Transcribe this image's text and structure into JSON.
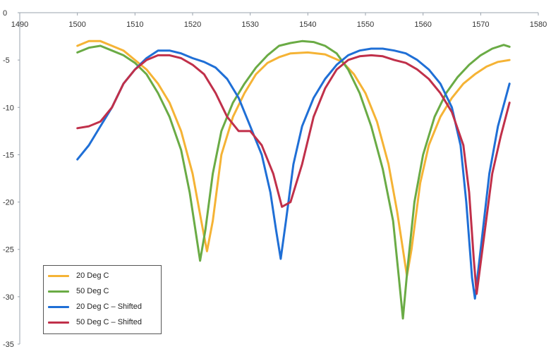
{
  "chart_data": {
    "type": "line",
    "title": "",
    "xlabel": "",
    "ylabel": "",
    "xlim": [
      1490,
      1580
    ],
    "ylim": [
      -35,
      0
    ],
    "x_ticks": [
      "1490",
      "1500",
      "1510",
      "1520",
      "1530",
      "1540",
      "1550",
      "1560",
      "1570",
      "1580"
    ],
    "y_ticks": [
      "0",
      "-5",
      "-10",
      "-15",
      "-20",
      "-25",
      "-30",
      "-35"
    ],
    "grid": false,
    "legend_position": "bottom-left",
    "series": [
      {
        "name": "20 Deg C",
        "color": "#f5b335",
        "points": [
          [
            1500,
            -3.5
          ],
          [
            1502,
            -3
          ],
          [
            1504,
            -3
          ],
          [
            1506,
            -3.5
          ],
          [
            1508,
            -4
          ],
          [
            1510,
            -5
          ],
          [
            1512,
            -6
          ],
          [
            1514,
            -7.5
          ],
          [
            1516,
            -9.5
          ],
          [
            1518,
            -12.5
          ],
          [
            1520,
            -17
          ],
          [
            1521.5,
            -22
          ],
          [
            1522.5,
            -25.2
          ],
          [
            1523.5,
            -22
          ],
          [
            1525,
            -15
          ],
          [
            1527,
            -11
          ],
          [
            1529,
            -8.5
          ],
          [
            1531,
            -6.5
          ],
          [
            1533,
            -5.3
          ],
          [
            1535,
            -4.7
          ],
          [
            1537,
            -4.3
          ],
          [
            1540,
            -4.2
          ],
          [
            1543,
            -4.4
          ],
          [
            1546,
            -5.2
          ],
          [
            1548,
            -6.5
          ],
          [
            1550,
            -8.5
          ],
          [
            1552,
            -11.5
          ],
          [
            1554,
            -16
          ],
          [
            1555.5,
            -21
          ],
          [
            1556.5,
            -25
          ],
          [
            1557.2,
            -27.8
          ],
          [
            1558,
            -25
          ],
          [
            1559.5,
            -18
          ],
          [
            1561,
            -14
          ],
          [
            1563,
            -11
          ],
          [
            1565,
            -9
          ],
          [
            1567,
            -7.5
          ],
          [
            1569,
            -6.5
          ],
          [
            1571,
            -5.7
          ],
          [
            1573,
            -5.2
          ],
          [
            1575,
            -5
          ]
        ]
      },
      {
        "name": "50 Deg C",
        "color": "#6aab45",
        "points": [
          [
            1500,
            -4.2
          ],
          [
            1502,
            -3.7
          ],
          [
            1504,
            -3.5
          ],
          [
            1506,
            -4
          ],
          [
            1508,
            -4.5
          ],
          [
            1510,
            -5.3
          ],
          [
            1512,
            -6.5
          ],
          [
            1514,
            -8.5
          ],
          [
            1516,
            -11
          ],
          [
            1518,
            -14.5
          ],
          [
            1519.5,
            -19
          ],
          [
            1520.5,
            -23
          ],
          [
            1521.3,
            -26.2
          ],
          [
            1522.2,
            -23
          ],
          [
            1523.5,
            -17
          ],
          [
            1525,
            -12.5
          ],
          [
            1527,
            -9.5
          ],
          [
            1529,
            -7.5
          ],
          [
            1531,
            -5.8
          ],
          [
            1533,
            -4.5
          ],
          [
            1535,
            -3.5
          ],
          [
            1537,
            -3.2
          ],
          [
            1539,
            -3
          ],
          [
            1541,
            -3.1
          ],
          [
            1543,
            -3.5
          ],
          [
            1545,
            -4.3
          ],
          [
            1547,
            -6
          ],
          [
            1549,
            -8.5
          ],
          [
            1551,
            -12
          ],
          [
            1553,
            -16.5
          ],
          [
            1554.8,
            -22
          ],
          [
            1555.8,
            -28
          ],
          [
            1556.5,
            -32.3
          ],
          [
            1557.3,
            -27
          ],
          [
            1558.5,
            -20
          ],
          [
            1560,
            -15
          ],
          [
            1562,
            -11
          ],
          [
            1564,
            -8.5
          ],
          [
            1566,
            -6.8
          ],
          [
            1568,
            -5.5
          ],
          [
            1570,
            -4.5
          ],
          [
            1572,
            -3.8
          ],
          [
            1574,
            -3.4
          ],
          [
            1575,
            -3.6
          ]
        ]
      },
      {
        "name": "20 Deg C – Shifted",
        "color": "#1f6fd6",
        "points": [
          [
            1500,
            -15.5
          ],
          [
            1502,
            -14
          ],
          [
            1504,
            -12
          ],
          [
            1506,
            -10
          ],
          [
            1508,
            -7.5
          ],
          [
            1510,
            -6
          ],
          [
            1512,
            -4.8
          ],
          [
            1514,
            -4
          ],
          [
            1516,
            -4
          ],
          [
            1518,
            -4.3
          ],
          [
            1520,
            -4.8
          ],
          [
            1522,
            -5.2
          ],
          [
            1524,
            -5.8
          ],
          [
            1526,
            -7
          ],
          [
            1528,
            -9
          ],
          [
            1530,
            -12
          ],
          [
            1532,
            -15
          ],
          [
            1533.5,
            -19
          ],
          [
            1534.5,
            -23
          ],
          [
            1535.3,
            -26
          ],
          [
            1536.2,
            -22
          ],
          [
            1537.5,
            -16
          ],
          [
            1539,
            -12
          ],
          [
            1541,
            -9
          ],
          [
            1543,
            -7
          ],
          [
            1545,
            -5.5
          ],
          [
            1547,
            -4.5
          ],
          [
            1549,
            -4
          ],
          [
            1551,
            -3.8
          ],
          [
            1553,
            -3.8
          ],
          [
            1555,
            -4
          ],
          [
            1557,
            -4.3
          ],
          [
            1559,
            -5
          ],
          [
            1561,
            -6
          ],
          [
            1563,
            -7.5
          ],
          [
            1565,
            -10
          ],
          [
            1566.5,
            -14
          ],
          [
            1567.5,
            -20
          ],
          [
            1568.5,
            -28
          ],
          [
            1569,
            -30.2
          ],
          [
            1570,
            -25
          ],
          [
            1571.5,
            -17
          ],
          [
            1573,
            -12
          ],
          [
            1575,
            -7.5
          ]
        ]
      },
      {
        "name": "50 Deg C – Shifted",
        "color": "#c0304a",
        "points": [
          [
            1500,
            -12.2
          ],
          [
            1502,
            -12
          ],
          [
            1504,
            -11.5
          ],
          [
            1506,
            -10
          ],
          [
            1508,
            -7.5
          ],
          [
            1510,
            -6
          ],
          [
            1512,
            -5
          ],
          [
            1514,
            -4.5
          ],
          [
            1516,
            -4.5
          ],
          [
            1518,
            -4.8
          ],
          [
            1520,
            -5.5
          ],
          [
            1522,
            -6.5
          ],
          [
            1524,
            -8.5
          ],
          [
            1526,
            -11
          ],
          [
            1528,
            -12.5
          ],
          [
            1530,
            -12.5
          ],
          [
            1532,
            -14
          ],
          [
            1534,
            -17
          ],
          [
            1535.5,
            -20.5
          ],
          [
            1537,
            -20
          ],
          [
            1539,
            -16
          ],
          [
            1541,
            -11
          ],
          [
            1543,
            -8
          ],
          [
            1545,
            -6
          ],
          [
            1547,
            -5
          ],
          [
            1549,
            -4.6
          ],
          [
            1551,
            -4.5
          ],
          [
            1553,
            -4.6
          ],
          [
            1555,
            -5
          ],
          [
            1557,
            -5.3
          ],
          [
            1559,
            -6
          ],
          [
            1561,
            -7
          ],
          [
            1563,
            -8.5
          ],
          [
            1565,
            -10.5
          ],
          [
            1567,
            -14
          ],
          [
            1568,
            -19
          ],
          [
            1568.8,
            -26
          ],
          [
            1569.3,
            -29.7
          ],
          [
            1570.3,
            -25
          ],
          [
            1572,
            -17
          ],
          [
            1573.5,
            -13
          ],
          [
            1575,
            -9.5
          ]
        ]
      }
    ]
  }
}
